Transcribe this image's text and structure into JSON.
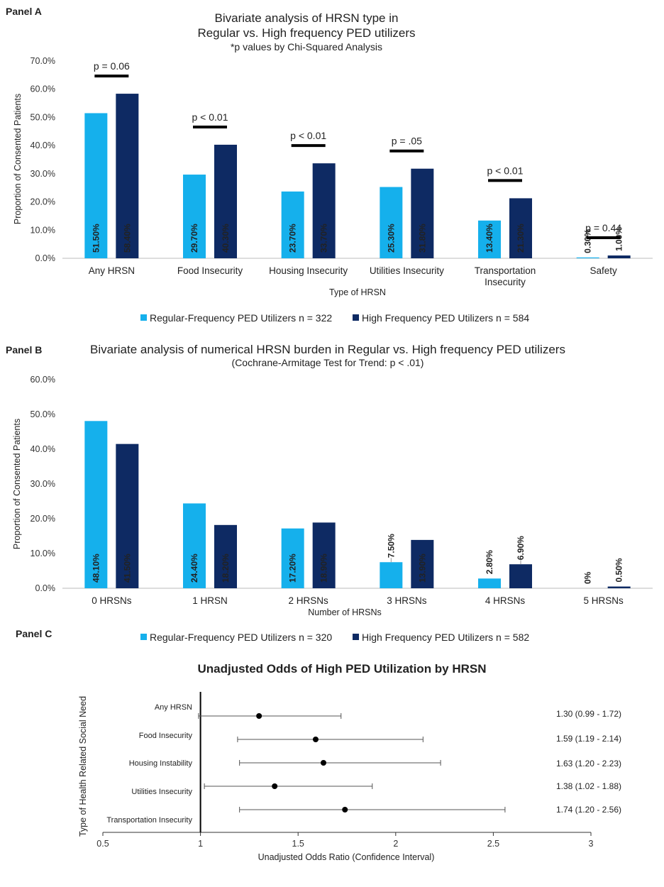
{
  "colors": {
    "regular": "#15b0ec",
    "high": "#0e2a63",
    "axis": "#bbbbbb",
    "text": "#222222"
  },
  "panel_a": {
    "label": "Panel A",
    "title_line1": "Bivariate analysis of HRSN type in",
    "title_line2": "Regular vs. High frequency PED utilizers",
    "subtitle": "*p values by  Chi-Squared Analysis",
    "ylabel": "Proportion of Consented Patients",
    "xlabel": "Type of HRSN",
    "legend": [
      "Regular-Frequency PED Utilizers n = 322",
      "High Frequency PED Utilizers n = 584"
    ]
  },
  "panel_b": {
    "label": "Panel B",
    "title": "Bivariate analysis of numerical HRSN burden in Regular vs. High frequency PED utilizers",
    "subtitle": "(Cochrane-Armitage Test for Trend: p < .01)",
    "ylabel": "Proportion of Consented Patients",
    "xlabel": "Number of HRSNs",
    "legend": [
      "Regular-Frequency PED Utilizers n = 320",
      "High Frequency PED Utilizers n = 582"
    ]
  },
  "panel_c": {
    "label": "Panel C",
    "title": "Unadjusted Odds of High PED Utilization by HRSN",
    "ylabel": "Type of Health Related Social Need",
    "xlabel": "Unadjusted Odds Ratio (Confidence Interval)"
  },
  "chart_data": [
    {
      "type": "bar",
      "title": "Bivariate analysis of HRSN type in Regular vs. High frequency PED utilizers",
      "xlabel": "Type of HRSN",
      "ylabel": "Proportion of Consented Patients",
      "ylim": [
        0,
        70
      ],
      "yticks": [
        "0.0%",
        "10.0%",
        "20.0%",
        "30.0%",
        "40.0%",
        "50.0%",
        "60.0%",
        "70.0%"
      ],
      "categories": [
        "Any HRSN",
        "Food Insecurity",
        "Housing Insecurity",
        "Utilities Insecurity",
        "Transportation Insecurity",
        "Safety"
      ],
      "series": [
        {
          "name": "Regular-Frequency PED Utilizers n = 322",
          "values": [
            51.5,
            29.7,
            23.7,
            25.3,
            13.4,
            0.3
          ],
          "labels": [
            "51.50%",
            "29.70%",
            "23.70%",
            "25.30%",
            "13.40%",
            "0.30%"
          ]
        },
        {
          "name": "High Frequency PED Utilizers n = 584",
          "values": [
            58.4,
            40.3,
            33.7,
            31.8,
            21.3,
            1.0
          ],
          "labels": [
            "58.40%",
            "40.30%",
            "33.70%",
            "31.80%",
            "21.30%",
            "1.00%"
          ]
        }
      ],
      "p_values": [
        "p = 0.06",
        "p < 0.01",
        "p < 0.01",
        "p = .05",
        "p < 0.01",
        "p = 0.44"
      ],
      "legend_position": "bottom"
    },
    {
      "type": "bar",
      "title": "Bivariate analysis of numerical HRSN burden in Regular vs. High frequency PED utilizers",
      "xlabel": "Number of HRSNs",
      "ylabel": "Proportion of Consented Patients",
      "ylim": [
        0,
        60
      ],
      "yticks": [
        "0.0%",
        "10.0%",
        "20.0%",
        "30.0%",
        "40.0%",
        "50.0%",
        "60.0%"
      ],
      "categories": [
        "0 HRSNs",
        "1 HRSN",
        "2 HRSNs",
        "3 HRSNs",
        "4 HRSNs",
        "5 HRSNs"
      ],
      "series": [
        {
          "name": "Regular-Frequency PED Utilizers n = 320",
          "values": [
            48.1,
            24.4,
            17.2,
            7.5,
            2.8,
            0
          ],
          "labels": [
            "48.10%",
            "24.40%",
            "17.20%",
            "7.50%",
            "2.80%",
            "0%"
          ]
        },
        {
          "name": "High Frequency PED Utilizers n = 582",
          "values": [
            41.5,
            18.2,
            18.9,
            13.9,
            6.9,
            0.5
          ],
          "labels": [
            "41.50%",
            "18.20%",
            "18.90%",
            "13.90%",
            "6.90%",
            "0.50%"
          ]
        }
      ],
      "legend_position": "bottom"
    },
    {
      "type": "scatter",
      "title": "Unadjusted Odds of High PED Utilization by HRSN",
      "xlabel": "Unadjusted Odds Ratio (Confidence Interval)",
      "ylabel": "Type of Health Related Social Need",
      "xlim": [
        0.5,
        3
      ],
      "xticks": [
        "0.5",
        "1",
        "1.5",
        "2",
        "2.5",
        "3"
      ],
      "reference_line": 1,
      "rows": [
        {
          "label": "Any HRSN",
          "or": 1.3,
          "lo": 0.99,
          "hi": 1.72,
          "text": "1.30 (0.99 - 1.72)"
        },
        {
          "label": "Food Insecurity",
          "or": 1.59,
          "lo": 1.19,
          "hi": 2.14,
          "text": "1.59 (1.19 - 2.14)"
        },
        {
          "label": "Housing Instability",
          "or": 1.63,
          "lo": 1.2,
          "hi": 2.23,
          "text": "1.63 (1.20 - 2.23)"
        },
        {
          "label": "Utilities Insecurity",
          "or": 1.38,
          "lo": 1.02,
          "hi": 1.88,
          "text": "1.38 (1.02 - 1.88)"
        },
        {
          "label": "Transportation Insecurity",
          "or": 1.74,
          "lo": 1.2,
          "hi": 2.56,
          "text": "1.74 (1.20 - 2.56)"
        }
      ]
    }
  ]
}
